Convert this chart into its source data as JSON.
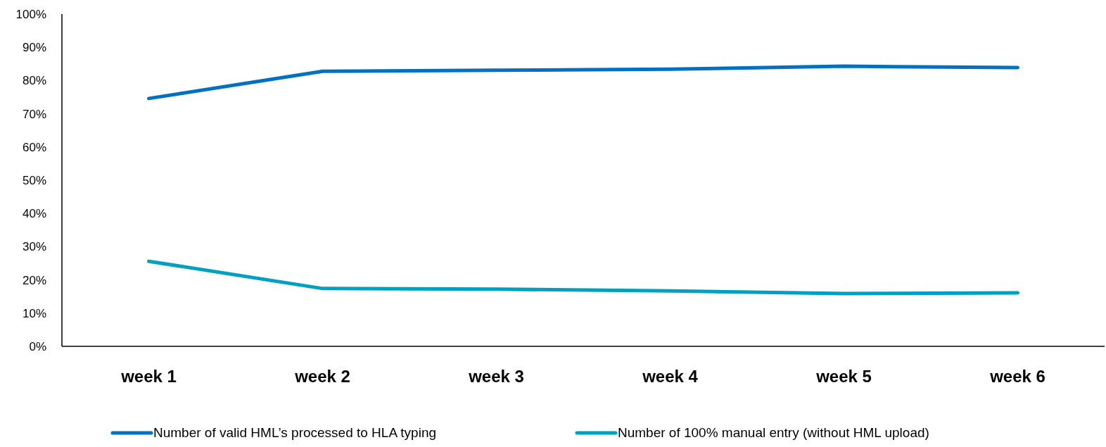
{
  "chart_data": {
    "type": "line",
    "categories": [
      "week 1",
      "week 2",
      "week 3",
      "week 4",
      "week 5",
      "week 6"
    ],
    "series": [
      {
        "name": "Number of valid HML’s processed to HLA typing",
        "color": "#0070c0",
        "values": [
          74.6,
          82.8,
          83.1,
          83.4,
          84.3,
          83.9
        ]
      },
      {
        "name": "Number of 100% manual entry (without HML upload)",
        "color": "#00a0c0",
        "values": [
          25.6,
          17.4,
          17.2,
          16.7,
          15.9,
          16.1
        ]
      }
    ],
    "ylim": [
      0,
      100
    ],
    "yticks": [
      {
        "value": 0,
        "label": "0%"
      },
      {
        "value": 10,
        "label": "10%"
      },
      {
        "value": 20,
        "label": "20%"
      },
      {
        "value": 30,
        "label": "30%"
      },
      {
        "value": 40,
        "label": "40%"
      },
      {
        "value": 50,
        "label": "50%"
      },
      {
        "value": 60,
        "label": "60%"
      },
      {
        "value": 70,
        "label": "70%"
      },
      {
        "value": 80,
        "label": "80%"
      },
      {
        "value": 90,
        "label": "90%"
      },
      {
        "value": 100,
        "label": "100%"
      }
    ],
    "grid": false,
    "legend": "bottom",
    "marker": "none",
    "line_style": "solid"
  }
}
